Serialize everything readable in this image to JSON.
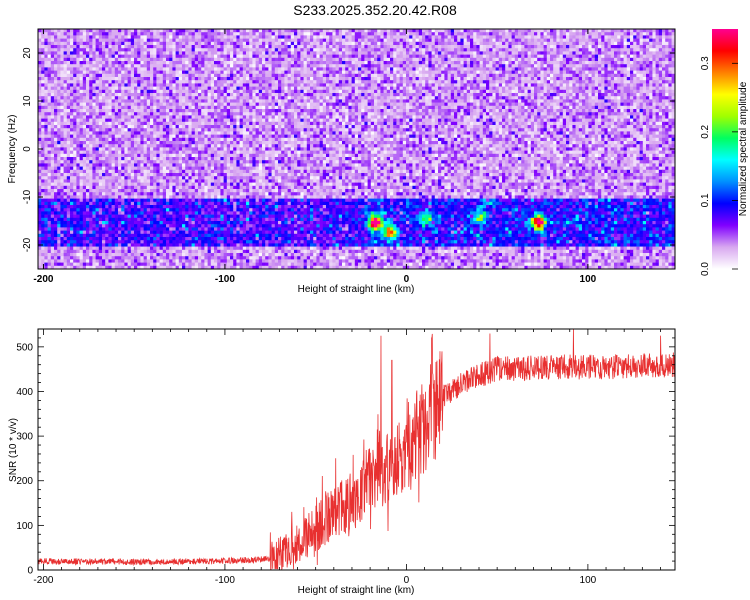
{
  "title": "S233.2025.352.20.42.R08",
  "chart_data": [
    {
      "type": "heatmap",
      "xlabel": "Height of straight line (km)",
      "ylabel": "Frequency (Hz)",
      "xlim": [
        -203,
        148
      ],
      "ylim": [
        -25,
        25
      ],
      "xticks": [
        -200,
        -100,
        0,
        100
      ],
      "yticks": [
        -20,
        -10,
        0,
        10,
        20
      ],
      "colorbar": {
        "label": "Normalized spectral amplitude",
        "range": [
          0,
          0.35
        ],
        "ticks": [
          "0.0",
          "0.1",
          "0.2",
          "0.3"
        ],
        "colors": [
          "#ffffff",
          "#d8a8f0",
          "#8000ff",
          "#0000ff",
          "#0090ff",
          "#00ffff",
          "#00ff60",
          "#a0ff00",
          "#ffff00",
          "#ff8000",
          "#ff0000",
          "#ff0090"
        ]
      },
      "features": {
        "band_frequency_range": [
          -20,
          -10
        ],
        "strong_spots": [
          {
            "x": -18,
            "y": -15,
            "value": 0.34
          },
          {
            "x": -10,
            "y": -17,
            "value": 0.22
          },
          {
            "x": 72,
            "y": -15,
            "value": 0.33
          },
          {
            "x": 10,
            "y": -14,
            "value": 0.12
          },
          {
            "x": 40,
            "y": -14,
            "value": 0.12
          }
        ]
      }
    },
    {
      "type": "line",
      "xlabel": "Height of straight line (km)",
      "ylabel": "SNR (10 * v/v)",
      "xlim": [
        -203,
        148
      ],
      "ylim": [
        0,
        540
      ],
      "xticks": [
        -200,
        -100,
        0,
        100
      ],
      "yticks": [
        0,
        100,
        200,
        300,
        400,
        500
      ],
      "color": "#e83030",
      "envelope": [
        {
          "x": -203,
          "y": 20
        },
        {
          "x": -150,
          "y": 18
        },
        {
          "x": -100,
          "y": 20
        },
        {
          "x": -75,
          "y": 25
        },
        {
          "x": -60,
          "y": 60
        },
        {
          "x": -45,
          "y": 110
        },
        {
          "x": -30,
          "y": 160
        },
        {
          "x": -20,
          "y": 200
        },
        {
          "x": -10,
          "y": 220
        },
        {
          "x": 0,
          "y": 260
        },
        {
          "x": 10,
          "y": 330
        },
        {
          "x": 20,
          "y": 390
        },
        {
          "x": 35,
          "y": 430
        },
        {
          "x": 50,
          "y": 450
        },
        {
          "x": 80,
          "y": 455
        },
        {
          "x": 110,
          "y": 455
        },
        {
          "x": 148,
          "y": 460
        }
      ],
      "peaks": [
        {
          "x": -14,
          "y": 525
        },
        {
          "x": -8,
          "y": 470
        },
        {
          "x": 14,
          "y": 520
        },
        {
          "x": 46,
          "y": 530
        },
        {
          "x": 92,
          "y": 540
        },
        {
          "x": 140,
          "y": 525
        }
      ]
    }
  ]
}
